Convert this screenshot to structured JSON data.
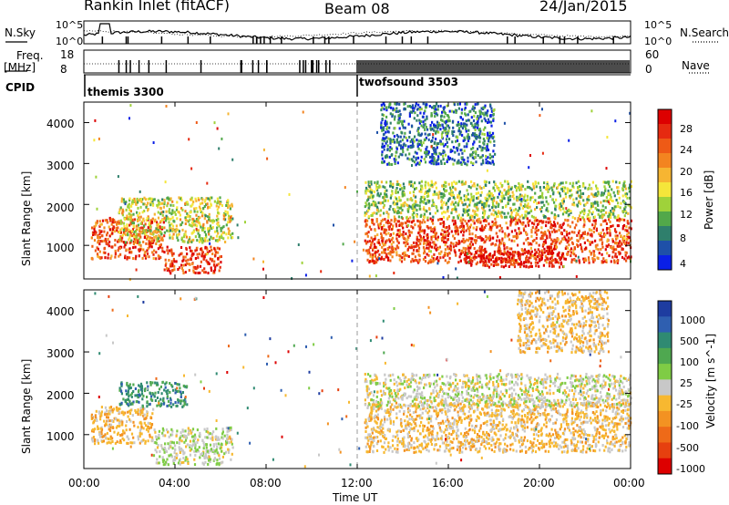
{
  "header": {
    "title": "Rankin Inlet (fitACF)",
    "beam": "Beam 08",
    "date": "24/Jan/2015"
  },
  "top_panels": {
    "nsky_label": "N.Sky",
    "nsky_ticks": [
      "10^5",
      "10^0"
    ],
    "nsearch_label": "N.Search",
    "nsearch_ticks": [
      "10^5",
      "10^0"
    ],
    "freq_label": "Freq.",
    "freq_unit": "[MHz]",
    "freq_ticks": [
      "18",
      "8"
    ],
    "nave_label": "Nave",
    "nave_ticks": [
      "60",
      "0"
    ],
    "cpid_label": "CPID",
    "cpid_modes": [
      {
        "name": "themis 3300",
        "start_hour": 0
      },
      {
        "name": "twofsound 3503",
        "start_hour": 12
      }
    ]
  },
  "axes": {
    "x_ticks": [
      "00:00",
      "04:00",
      "08:00",
      "12:00",
      "16:00",
      "20:00",
      "00:00"
    ],
    "xlabel": "Time UT",
    "ylabel": "Slant Range [km]",
    "y_ticks": [
      "1000",
      "2000",
      "3000",
      "4000"
    ]
  },
  "colorbars": {
    "power": {
      "label": "Power [dB]",
      "ticks": [
        "4",
        "8",
        "12",
        "16",
        "20",
        "24",
        "28"
      ],
      "colors": [
        "#0a1fe6",
        "#1e50a8",
        "#2f7f6c",
        "#52a84a",
        "#9fd23a",
        "#f5e63a",
        "#f6b532",
        "#f38420",
        "#ee5a16",
        "#e62a10",
        "#dd0000"
      ]
    },
    "velocity": {
      "label": "Velocity [m s^-1]",
      "ticks": [
        "1000",
        "500",
        "100",
        "25",
        "-25",
        "-100",
        "-500",
        "-1000"
      ],
      "colors": [
        "#1e3ca0",
        "#2f5fb0",
        "#2f8a72",
        "#4fa850",
        "#7fcc45",
        "#c8c8c8",
        "#f7b830",
        "#f39222",
        "#ee6a18",
        "#e6400f",
        "#dd0000"
      ]
    }
  },
  "chart_data": [
    {
      "type": "heatmap",
      "title": "Power",
      "x_range_hours": [
        0,
        24
      ],
      "y_range_km": [
        180,
        4500
      ],
      "colorbar_range_dB": [
        0,
        30
      ],
      "scatter_regions": [
        {
          "hour_start": 0.3,
          "hour_end": 3.5,
          "km_low": 700,
          "km_high": 1700,
          "power_dB": 24
        },
        {
          "hour_start": 3.5,
          "hour_end": 6.0,
          "km_low": 350,
          "km_high": 1000,
          "power_dB": 26
        },
        {
          "hour_start": 1.5,
          "hour_end": 6.5,
          "km_low": 1100,
          "km_high": 2200,
          "power_dB": 14
        },
        {
          "hour_start": 12.3,
          "hour_end": 24.0,
          "km_low": 600,
          "km_high": 1700,
          "power_dB": 24
        },
        {
          "hour_start": 16.5,
          "hour_end": 21.0,
          "km_low": 500,
          "km_high": 900,
          "power_dB": 28
        },
        {
          "hour_start": 12.3,
          "hour_end": 24.0,
          "km_low": 1700,
          "km_high": 2600,
          "power_dB": 12
        },
        {
          "hour_start": 13.0,
          "hour_end": 18.0,
          "km_low": 3000,
          "km_high": 4500,
          "power_dB": 6
        }
      ]
    },
    {
      "type": "heatmap",
      "title": "Velocity",
      "x_range_hours": [
        0,
        24
      ],
      "y_range_km": [
        180,
        4500
      ],
      "colorbar_range_ms": [
        -1000,
        1000
      ],
      "scatter_regions": [
        {
          "hour_start": 0.3,
          "hour_end": 3.0,
          "km_low": 800,
          "km_high": 1700,
          "velocity_ms": -200
        },
        {
          "hour_start": 3.0,
          "hour_end": 6.5,
          "km_low": 300,
          "km_high": 1200,
          "velocity_ms": 50
        },
        {
          "hour_start": 1.5,
          "hour_end": 4.5,
          "km_low": 1700,
          "km_high": 2300,
          "velocity_ms": 500
        },
        {
          "hour_start": 12.3,
          "hour_end": 24.0,
          "km_low": 600,
          "km_high": 1800,
          "velocity_ms": -150
        },
        {
          "hour_start": 12.3,
          "hour_end": 24.0,
          "km_low": 1700,
          "km_high": 2500,
          "velocity_ms": 0
        },
        {
          "hour_start": 19.0,
          "hour_end": 23.0,
          "km_low": 3000,
          "km_high": 4500,
          "velocity_ms": -150
        }
      ]
    }
  ]
}
